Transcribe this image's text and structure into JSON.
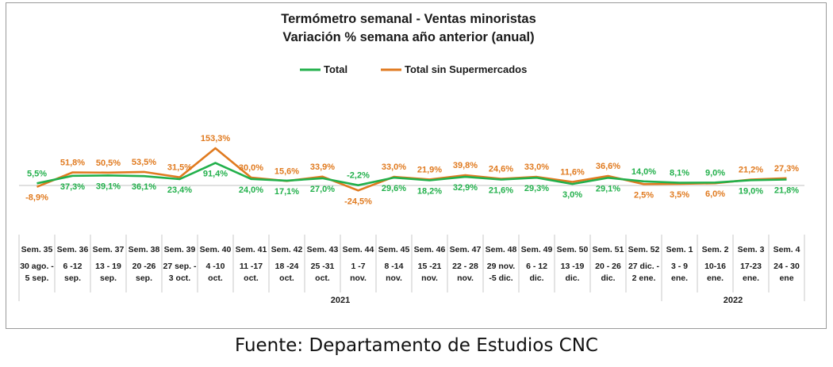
{
  "chart_data": {
    "type": "line",
    "title": "Termómetro semanal - Ventas minoristas",
    "subtitle": "Variación % semana año anterior (anual)",
    "categories": [
      "Sem. 35",
      "Sem. 36",
      "Sem. 37",
      "Sem. 38",
      "Sem. 39",
      "Sem. 40",
      "Sem. 41",
      "Sem. 42",
      "Sem. 43",
      "Sem. 44",
      "Sem. 45",
      "Sem. 46",
      "Sem. 47",
      "Sem. 48",
      "Sem. 49",
      "Sem. 50",
      "Sem. 51",
      "Sem. 52",
      "Sem. 1",
      "Sem. 2",
      "Sem. 3",
      "Sem. 4"
    ],
    "date_ranges": [
      [
        "30 ago. -",
        "5 sep."
      ],
      [
        "6 -12",
        "sep."
      ],
      [
        "13 - 19",
        "sep."
      ],
      [
        "20 -26",
        "sep."
      ],
      [
        "27 sep. -",
        "3 oct."
      ],
      [
        "4 -10",
        "oct."
      ],
      [
        "11 -17",
        "oct."
      ],
      [
        "18 -24",
        "oct."
      ],
      [
        "25 -31",
        "oct."
      ],
      [
        "1 -7",
        "nov."
      ],
      [
        "8 -14",
        "nov."
      ],
      [
        "15 -21",
        "nov."
      ],
      [
        "22 - 28",
        "nov."
      ],
      [
        "29 nov.",
        "-5 dic."
      ],
      [
        "6 - 12",
        "dic."
      ],
      [
        "13 -19",
        "dic."
      ],
      [
        "20 - 26",
        "dic."
      ],
      [
        "27 dic. -",
        "2 ene."
      ],
      [
        "3 - 9",
        "ene."
      ],
      [
        "10-16",
        "ene."
      ],
      [
        "17-23",
        "ene."
      ],
      [
        "24 - 30",
        "ene"
      ]
    ],
    "years": [
      {
        "label": "2021",
        "from": 0,
        "to": 17
      },
      {
        "label": "2022",
        "from": 18,
        "to": 21
      }
    ],
    "series": [
      {
        "name": "Total",
        "color": "#22b04b",
        "values": [
          5.5,
          37.3,
          39.1,
          36.1,
          23.4,
          91.4,
          24.0,
          17.1,
          27.0,
          -2.2,
          29.6,
          18.2,
          32.9,
          21.6,
          29.3,
          3.0,
          29.1,
          14.0,
          8.1,
          9.0,
          19.0,
          21.8
        ],
        "labels": [
          "5,5%",
          "37,3%",
          "39,1%",
          "36,1%",
          "23,4%",
          "91,4%",
          "24,0%",
          "17,1%",
          "27,0%",
          "-2,2%",
          "29,6%",
          "18,2%",
          "32,9%",
          "21,6%",
          "29,3%",
          "3,0%",
          "29,1%",
          "14,0%",
          "8,1%",
          "9,0%",
          "19,0%",
          "21,8%"
        ]
      },
      {
        "name": "Total sin Supermercados",
        "color": "#e07a1f",
        "values": [
          -8.9,
          51.8,
          50.5,
          53.5,
          31.5,
          153.3,
          30.0,
          15.6,
          33.9,
          -24.5,
          33.0,
          21.9,
          39.8,
          24.6,
          33.0,
          11.6,
          36.6,
          2.5,
          3.5,
          6.0,
          21.2,
          27.3
        ],
        "labels": [
          "-8,9%",
          "51,8%",
          "50,5%",
          "53,5%",
          "31,5%",
          "153,3%",
          "30,0%",
          "15,6%",
          "33,9%",
          "-24,5%",
          "33,0%",
          "21,9%",
          "39,8%",
          "24,6%",
          "33,0%",
          "11,6%",
          "36,6%",
          "2,5%",
          "3,5%",
          "6,0%",
          "21,2%",
          "27,3%"
        ]
      }
    ],
    "label_side": {
      "Total": [
        "above",
        "below",
        "below",
        "below",
        "below",
        "below",
        "below",
        "below",
        "below",
        "above",
        "below",
        "below",
        "below",
        "below",
        "below",
        "below",
        "below",
        "above",
        "above",
        "above",
        "below",
        "below"
      ],
      "Total sin Supermercados": [
        "below",
        "above",
        "above",
        "above",
        "above",
        "above",
        "above",
        "above",
        "above",
        "below",
        "above",
        "above",
        "above",
        "above",
        "above",
        "above",
        "above",
        "below",
        "below",
        "below",
        "above",
        "above"
      ]
    },
    "legend_position": "top-center",
    "grid": false
  },
  "source": "Fuente: Departamento de Estudios CNC"
}
